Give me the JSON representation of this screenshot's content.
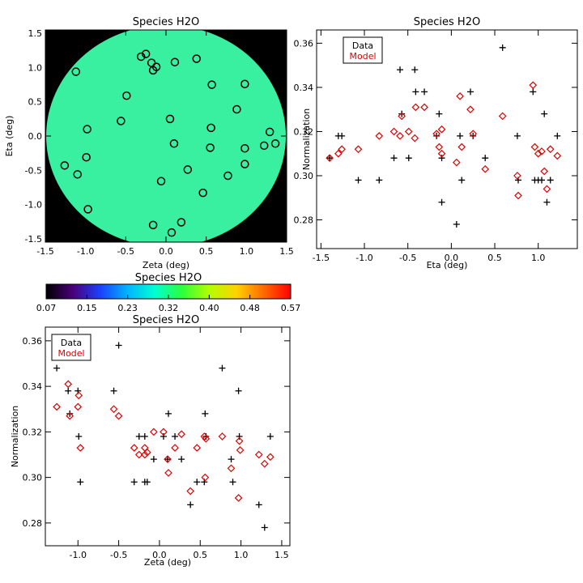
{
  "chart_data": [
    {
      "type": "scatter",
      "title": "Species H2O",
      "xlabel": "Zeta (deg)",
      "ylabel": "Eta (deg)",
      "xlim": [
        -1.5,
        1.5
      ],
      "ylim": [
        -1.55,
        1.55
      ],
      "xticks": [
        -1.5,
        -1.0,
        -0.5,
        0.0,
        0.5,
        1.0,
        1.5
      ],
      "yticks": [
        -1.5,
        -1.0,
        -0.5,
        0.0,
        0.5,
        1.0,
        1.5
      ],
      "xtick_labels": [
        "-1.5",
        "-1.0",
        "-0.5",
        "0.0",
        "0.5",
        "1.0",
        "1.5"
      ],
      "ytick_labels": [
        "-1.5",
        "-1.0",
        "-0.5",
        "0.0",
        "0.5",
        "1.0",
        "1.5"
      ],
      "background_color": "#000000",
      "field_color": "#38f0a0",
      "marker": "open-circle",
      "positions": [
        {
          "x": -1.12,
          "y": 0.94
        },
        {
          "x": -0.31,
          "y": 1.16
        },
        {
          "x": -0.25,
          "y": 1.2
        },
        {
          "x": -0.18,
          "y": 1.07
        },
        {
          "x": -0.16,
          "y": 0.96
        },
        {
          "x": -0.12,
          "y": 1.01
        },
        {
          "x": 0.11,
          "y": 1.08
        },
        {
          "x": 0.38,
          "y": 1.13
        },
        {
          "x": -0.49,
          "y": 0.59
        },
        {
          "x": 0.57,
          "y": 0.75
        },
        {
          "x": 0.98,
          "y": 0.76
        },
        {
          "x": -0.56,
          "y": 0.22
        },
        {
          "x": 0.05,
          "y": 0.25
        },
        {
          "x": 0.56,
          "y": 0.12
        },
        {
          "x": 0.88,
          "y": 0.39
        },
        {
          "x": -0.98,
          "y": 0.1
        },
        {
          "x": 1.29,
          "y": 0.06
        },
        {
          "x": 0.1,
          "y": -0.11
        },
        {
          "x": 0.55,
          "y": -0.17
        },
        {
          "x": 0.98,
          "y": -0.18
        },
        {
          "x": 1.22,
          "y": -0.14
        },
        {
          "x": 1.36,
          "y": -0.11
        },
        {
          "x": -0.99,
          "y": -0.31
        },
        {
          "x": -1.26,
          "y": -0.43
        },
        {
          "x": -1.1,
          "y": -0.56
        },
        {
          "x": 0.27,
          "y": -0.49
        },
        {
          "x": 0.77,
          "y": -0.58
        },
        {
          "x": 0.98,
          "y": -0.41
        },
        {
          "x": -0.06,
          "y": -0.66
        },
        {
          "x": 0.46,
          "y": -0.83
        },
        {
          "x": -0.97,
          "y": -1.07
        },
        {
          "x": -0.16,
          "y": -1.3
        },
        {
          "x": 0.19,
          "y": -1.26
        },
        {
          "x": 0.07,
          "y": -1.41
        }
      ]
    },
    {
      "type": "scatter",
      "title": "Species H2O",
      "xlabel": "Eta (deg)",
      "ylabel": "Normalization",
      "xlim": [
        -1.55,
        1.45
      ],
      "ylim": [
        0.267,
        0.366
      ],
      "xticks": [
        -1.5,
        -1.0,
        -0.5,
        0.0,
        0.5,
        1.0
      ],
      "yticks": [
        0.28,
        0.3,
        0.32,
        0.34,
        0.36
      ],
      "xtick_labels": [
        "-1.5",
        "-1.0",
        "-0.5",
        "0.0",
        "0.5",
        "1.0"
      ],
      "ytick_labels": [
        "0.28",
        "0.30",
        "0.32",
        "0.34",
        "0.36"
      ],
      "legend": {
        "position": "top-left",
        "entries": [
          "Data",
          "Model"
        ]
      },
      "series": [
        {
          "name": "Data",
          "color": "#000000",
          "marker": "plus",
          "points": [
            {
              "x": -1.4,
              "y": 0.308
            },
            {
              "x": -1.3,
              "y": 0.318
            },
            {
              "x": -1.26,
              "y": 0.318
            },
            {
              "x": -1.07,
              "y": 0.298
            },
            {
              "x": -0.83,
              "y": 0.298
            },
            {
              "x": -0.66,
              "y": 0.308
            },
            {
              "x": -0.59,
              "y": 0.348
            },
            {
              "x": -0.57,
              "y": 0.328
            },
            {
              "x": -0.49,
              "y": 0.308
            },
            {
              "x": -0.42,
              "y": 0.348
            },
            {
              "x": -0.41,
              "y": 0.338
            },
            {
              "x": -0.31,
              "y": 0.338
            },
            {
              "x": -0.17,
              "y": 0.318
            },
            {
              "x": -0.14,
              "y": 0.328
            },
            {
              "x": -0.11,
              "y": 0.288
            },
            {
              "x": -0.11,
              "y": 0.308
            },
            {
              "x": 0.06,
              "y": 0.278
            },
            {
              "x": 0.1,
              "y": 0.318
            },
            {
              "x": 0.12,
              "y": 0.298
            },
            {
              "x": 0.22,
              "y": 0.338
            },
            {
              "x": 0.25,
              "y": 0.318
            },
            {
              "x": 0.39,
              "y": 0.308
            },
            {
              "x": 0.59,
              "y": 0.358
            },
            {
              "x": 0.76,
              "y": 0.318
            },
            {
              "x": 0.77,
              "y": 0.298
            },
            {
              "x": 0.94,
              "y": 0.338
            },
            {
              "x": 0.96,
              "y": 0.298
            },
            {
              "x": 1.0,
              "y": 0.298
            },
            {
              "x": 1.04,
              "y": 0.298
            },
            {
              "x": 1.07,
              "y": 0.328
            },
            {
              "x": 1.1,
              "y": 0.288
            },
            {
              "x": 1.14,
              "y": 0.298
            },
            {
              "x": 1.22,
              "y": 0.318
            }
          ]
        },
        {
          "name": "Model",
          "color": "#dd0000",
          "marker": "open-diamond",
          "points": [
            {
              "x": -1.4,
              "y": 0.308
            },
            {
              "x": -1.3,
              "y": 0.31
            },
            {
              "x": -1.26,
              "y": 0.312
            },
            {
              "x": -1.07,
              "y": 0.312
            },
            {
              "x": -0.83,
              "y": 0.318
            },
            {
              "x": -0.66,
              "y": 0.32
            },
            {
              "x": -0.59,
              "y": 0.318
            },
            {
              "x": -0.57,
              "y": 0.327
            },
            {
              "x": -0.49,
              "y": 0.32
            },
            {
              "x": -0.42,
              "y": 0.317
            },
            {
              "x": -0.41,
              "y": 0.331
            },
            {
              "x": -0.31,
              "y": 0.331
            },
            {
              "x": -0.17,
              "y": 0.319
            },
            {
              "x": -0.14,
              "y": 0.313
            },
            {
              "x": -0.11,
              "y": 0.31
            },
            {
              "x": -0.11,
              "y": 0.321
            },
            {
              "x": 0.06,
              "y": 0.306
            },
            {
              "x": 0.1,
              "y": 0.336
            },
            {
              "x": 0.12,
              "y": 0.313
            },
            {
              "x": 0.22,
              "y": 0.33
            },
            {
              "x": 0.25,
              "y": 0.319
            },
            {
              "x": 0.39,
              "y": 0.303
            },
            {
              "x": 0.59,
              "y": 0.327
            },
            {
              "x": 0.76,
              "y": 0.3
            },
            {
              "x": 0.77,
              "y": 0.291
            },
            {
              "x": 0.94,
              "y": 0.341
            },
            {
              "x": 0.96,
              "y": 0.313
            },
            {
              "x": 1.0,
              "y": 0.31
            },
            {
              "x": 1.04,
              "y": 0.311
            },
            {
              "x": 1.07,
              "y": 0.302
            },
            {
              "x": 1.1,
              "y": 0.294
            },
            {
              "x": 1.14,
              "y": 0.312
            },
            {
              "x": 1.22,
              "y": 0.309
            }
          ]
        }
      ]
    },
    {
      "type": "colorbar",
      "title": "Species H2O",
      "min": 0.07,
      "max": 0.57,
      "tick_labels": [
        "0.07",
        "0.15",
        "0.23",
        "0.32",
        "0.40",
        "0.48",
        "0.57"
      ],
      "colormap": [
        "#000000",
        "#4b007d",
        "#1a40ff",
        "#00b4ff",
        "#00ffd2",
        "#2cff3c",
        "#b4ff00",
        "#ffd200",
        "#ff6a00",
        "#ff0000"
      ]
    },
    {
      "type": "scatter",
      "title": "Species H2O",
      "xlabel": "Zeta (deg)",
      "ylabel": "Normalization",
      "xlim": [
        -1.4,
        1.6
      ],
      "ylim": [
        0.27,
        0.366
      ],
      "xticks": [
        -1.0,
        -0.5,
        0.0,
        0.5,
        1.0,
        1.5
      ],
      "yticks": [
        0.28,
        0.3,
        0.32,
        0.34,
        0.36
      ],
      "xtick_labels": [
        "-1.0",
        "-0.5",
        "0.0",
        "0.5",
        "1.0",
        "1.5"
      ],
      "ytick_labels": [
        "0.28",
        "0.30",
        "0.32",
        "0.34",
        "0.36"
      ],
      "legend": {
        "position": "top-left",
        "entries": [
          "Data",
          "Model"
        ]
      },
      "series": [
        {
          "name": "Data",
          "color": "#000000",
          "marker": "plus",
          "points": [
            {
              "x": -1.26,
              "y": 0.348
            },
            {
              "x": -1.12,
              "y": 0.338
            },
            {
              "x": -1.1,
              "y": 0.328
            },
            {
              "x": -1.0,
              "y": 0.338
            },
            {
              "x": -0.99,
              "y": 0.318
            },
            {
              "x": -0.97,
              "y": 0.298
            },
            {
              "x": -0.56,
              "y": 0.338
            },
            {
              "x": -0.5,
              "y": 0.358
            },
            {
              "x": -0.31,
              "y": 0.298
            },
            {
              "x": -0.25,
              "y": 0.318
            },
            {
              "x": -0.18,
              "y": 0.318
            },
            {
              "x": -0.18,
              "y": 0.298
            },
            {
              "x": -0.15,
              "y": 0.298
            },
            {
              "x": -0.07,
              "y": 0.308
            },
            {
              "x": 0.05,
              "y": 0.318
            },
            {
              "x": 0.1,
              "y": 0.308
            },
            {
              "x": 0.11,
              "y": 0.328
            },
            {
              "x": 0.19,
              "y": 0.318
            },
            {
              "x": 0.27,
              "y": 0.308
            },
            {
              "x": 0.38,
              "y": 0.288
            },
            {
              "x": 0.46,
              "y": 0.298
            },
            {
              "x": 0.55,
              "y": 0.298
            },
            {
              "x": 0.56,
              "y": 0.328
            },
            {
              "x": 0.57,
              "y": 0.318
            },
            {
              "x": 0.77,
              "y": 0.348
            },
            {
              "x": 0.88,
              "y": 0.308
            },
            {
              "x": 0.9,
              "y": 0.298
            },
            {
              "x": 0.97,
              "y": 0.338
            },
            {
              "x": 0.98,
              "y": 0.318
            },
            {
              "x": 1.22,
              "y": 0.288
            },
            {
              "x": 1.29,
              "y": 0.278
            },
            {
              "x": 1.36,
              "y": 0.318
            }
          ]
        },
        {
          "name": "Model",
          "color": "#dd0000",
          "marker": "open-diamond",
          "points": [
            {
              "x": -1.26,
              "y": 0.331
            },
            {
              "x": -1.12,
              "y": 0.341
            },
            {
              "x": -1.1,
              "y": 0.327
            },
            {
              "x": -1.0,
              "y": 0.331
            },
            {
              "x": -0.99,
              "y": 0.336
            },
            {
              "x": -0.97,
              "y": 0.313
            },
            {
              "x": -0.56,
              "y": 0.33
            },
            {
              "x": -0.5,
              "y": 0.327
            },
            {
              "x": -0.31,
              "y": 0.313
            },
            {
              "x": -0.25,
              "y": 0.31
            },
            {
              "x": -0.18,
              "y": 0.313
            },
            {
              "x": -0.18,
              "y": 0.31
            },
            {
              "x": -0.15,
              "y": 0.311
            },
            {
              "x": -0.07,
              "y": 0.32
            },
            {
              "x": 0.05,
              "y": 0.32
            },
            {
              "x": 0.1,
              "y": 0.308
            },
            {
              "x": 0.11,
              "y": 0.302
            },
            {
              "x": 0.19,
              "y": 0.313
            },
            {
              "x": 0.27,
              "y": 0.319
            },
            {
              "x": 0.38,
              "y": 0.294
            },
            {
              "x": 0.46,
              "y": 0.313
            },
            {
              "x": 0.55,
              "y": 0.318
            },
            {
              "x": 0.56,
              "y": 0.3
            },
            {
              "x": 0.57,
              "y": 0.317
            },
            {
              "x": 0.77,
              "y": 0.318
            },
            {
              "x": 0.88,
              "y": 0.304
            },
            {
              "x": 0.97,
              "y": 0.291
            },
            {
              "x": 0.98,
              "y": 0.316
            },
            {
              "x": 0.99,
              "y": 0.312
            },
            {
              "x": 1.22,
              "y": 0.31
            },
            {
              "x": 1.29,
              "y": 0.306
            },
            {
              "x": 1.36,
              "y": 0.309
            }
          ]
        }
      ]
    }
  ]
}
